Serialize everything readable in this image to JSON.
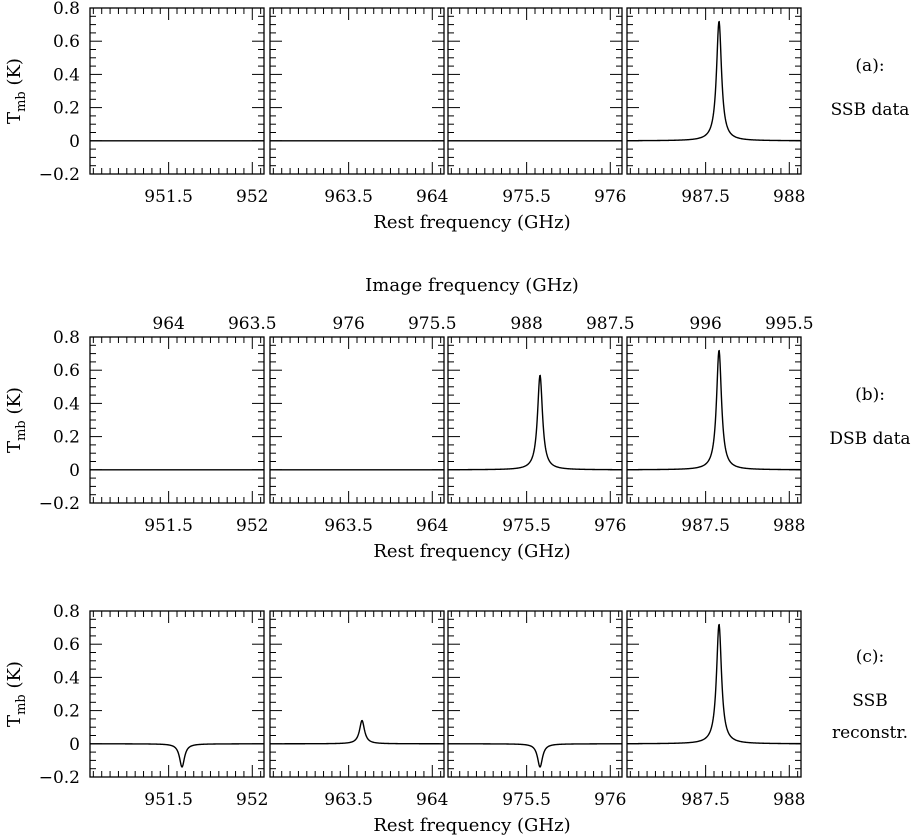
{
  "figure": {
    "ylabel_main": "T",
    "ylabel_sub": "mb",
    "ylabel_unit": " (K)",
    "xlabel": "Rest frequency (GHz)",
    "image_xlabel": "Image frequency (GHz)"
  },
  "chart_data": [
    {
      "type": "line",
      "row_label_lines": [
        "(a):",
        "SSB data"
      ],
      "ylim": [
        -0.2,
        0.8
      ],
      "yticks": [
        -0.2,
        0,
        0.2,
        0.4,
        0.6,
        0.8
      ],
      "ytick_labels": [
        "−0.2",
        "0",
        "0.2",
        "0.4",
        "0.6",
        "0.8"
      ],
      "xlabel": "Rest frequency (GHz)",
      "panels": [
        {
          "xlim": [
            951.03,
            952.07
          ],
          "xticks": [
            951.5,
            952
          ],
          "xtick_labels": [
            "951.5",
            "952"
          ],
          "line": {
            "center": 951.58,
            "amplitude": 0.0,
            "width": 0.018
          }
        },
        {
          "xlim": [
            963.03,
            964.07
          ],
          "xticks": [
            963.5,
            964
          ],
          "xtick_labels": [
            "963.5",
            "964"
          ],
          "line": {
            "center": 963.58,
            "amplitude": 0.0,
            "width": 0.018
          }
        },
        {
          "xlim": [
            975.03,
            976.07
          ],
          "xticks": [
            975.5,
            976
          ],
          "xtick_labels": [
            "975.5",
            "976"
          ],
          "line": {
            "center": 975.58,
            "amplitude": 0.0,
            "width": 0.018
          }
        },
        {
          "xlim": [
            987.03,
            988.07
          ],
          "xticks": [
            987.5,
            988
          ],
          "xtick_labels": [
            "987.5",
            "988"
          ],
          "line": {
            "center": 987.58,
            "amplitude": 0.72,
            "width": 0.018
          }
        }
      ]
    },
    {
      "type": "line",
      "row_label_lines": [
        "(b):",
        "DSB data"
      ],
      "ylim": [
        -0.2,
        0.8
      ],
      "yticks": [
        -0.2,
        0,
        0.2,
        0.4,
        0.6,
        0.8
      ],
      "ytick_labels": [
        "−0.2",
        "0",
        "0.2",
        "0.4",
        "0.6",
        "0.8"
      ],
      "xlabel": "Rest frequency (GHz)",
      "image_xlabel": "Image frequency (GHz)",
      "panels": [
        {
          "xlim": [
            951.03,
            952.07
          ],
          "xticks": [
            951.5,
            952
          ],
          "xtick_labels": [
            "951.5",
            "952"
          ],
          "image_tick_labels": [
            "964",
            "963.5"
          ],
          "line": {
            "center": 951.58,
            "amplitude": 0.0,
            "width": 0.018
          }
        },
        {
          "xlim": [
            963.03,
            964.07
          ],
          "xticks": [
            963.5,
            964
          ],
          "xtick_labels": [
            "963.5",
            "964"
          ],
          "image_tick_labels": [
            "976",
            "975.5"
          ],
          "line": {
            "center": 963.58,
            "amplitude": 0.0,
            "width": 0.018
          }
        },
        {
          "xlim": [
            975.03,
            976.07
          ],
          "xticks": [
            975.5,
            976
          ],
          "xtick_labels": [
            "975.5",
            "976"
          ],
          "image_tick_labels": [
            "988",
            "987.5"
          ],
          "line": {
            "center": 975.58,
            "amplitude": 0.57,
            "width": 0.018
          }
        },
        {
          "xlim": [
            987.03,
            988.07
          ],
          "xticks": [
            987.5,
            988
          ],
          "xtick_labels": [
            "987.5",
            "988"
          ],
          "image_tick_labels": [
            "996",
            "995.5"
          ],
          "line": {
            "center": 987.58,
            "amplitude": 0.72,
            "width": 0.018
          }
        }
      ]
    },
    {
      "type": "line",
      "row_label_lines": [
        "(c):",
        "SSB",
        "reconstr."
      ],
      "ylim": [
        -0.2,
        0.8
      ],
      "yticks": [
        -0.2,
        0,
        0.2,
        0.4,
        0.6,
        0.8
      ],
      "ytick_labels": [
        "−0.2",
        "0",
        "0.2",
        "0.4",
        "0.6",
        "0.8"
      ],
      "xlabel": "Rest frequency (GHz)",
      "panels": [
        {
          "xlim": [
            951.03,
            952.07
          ],
          "xticks": [
            951.5,
            952
          ],
          "xtick_labels": [
            "951.5",
            "952"
          ],
          "line": {
            "center": 951.58,
            "amplitude": -0.14,
            "width": 0.018
          }
        },
        {
          "xlim": [
            963.03,
            964.07
          ],
          "xticks": [
            963.5,
            964
          ],
          "xtick_labels": [
            "963.5",
            "964"
          ],
          "line": {
            "center": 963.58,
            "amplitude": 0.14,
            "width": 0.018
          }
        },
        {
          "xlim": [
            975.03,
            976.07
          ],
          "xticks": [
            975.5,
            976
          ],
          "xtick_labels": [
            "975.5",
            "976"
          ],
          "line": {
            "center": 975.58,
            "amplitude": -0.14,
            "width": 0.018
          }
        },
        {
          "xlim": [
            987.03,
            988.07
          ],
          "xticks": [
            987.5,
            988
          ],
          "xtick_labels": [
            "987.5",
            "988"
          ],
          "line": {
            "center": 987.58,
            "amplitude": 0.72,
            "width": 0.018
          }
        }
      ]
    }
  ]
}
